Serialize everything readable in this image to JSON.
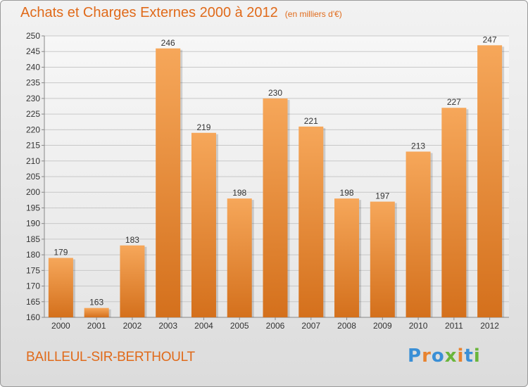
{
  "chart_data": {
    "type": "bar",
    "title": "Achats et Charges Externes 2000 à 2012",
    "subtitle": "(en milliers d'€)",
    "categories": [
      "2000",
      "2001",
      "2002",
      "2003",
      "2004",
      "2005",
      "2006",
      "2007",
      "2008",
      "2009",
      "2010",
      "2011",
      "2012"
    ],
    "values": [
      179,
      163,
      183,
      246,
      219,
      198,
      230,
      221,
      198,
      197,
      213,
      227,
      247
    ],
    "ylim": [
      160,
      250
    ],
    "yticks": [
      160,
      165,
      170,
      175,
      180,
      185,
      190,
      195,
      200,
      205,
      210,
      215,
      220,
      225,
      230,
      235,
      240,
      245,
      250
    ],
    "grid": true,
    "xlabel": "",
    "ylabel": "",
    "bar_color": "#e8832f"
  },
  "footer": {
    "place_name": "BAILLEUL-SIR-BERTHOULT",
    "logo_text": "Proxiti",
    "logo_colors": [
      "#3a8fd6",
      "#e8832f",
      "#3a8fd6",
      "#6ab53b",
      "#e8832f",
      "#3a8fd6",
      "#6ab53b"
    ]
  },
  "colors": {
    "accent": "#e06a1a"
  }
}
